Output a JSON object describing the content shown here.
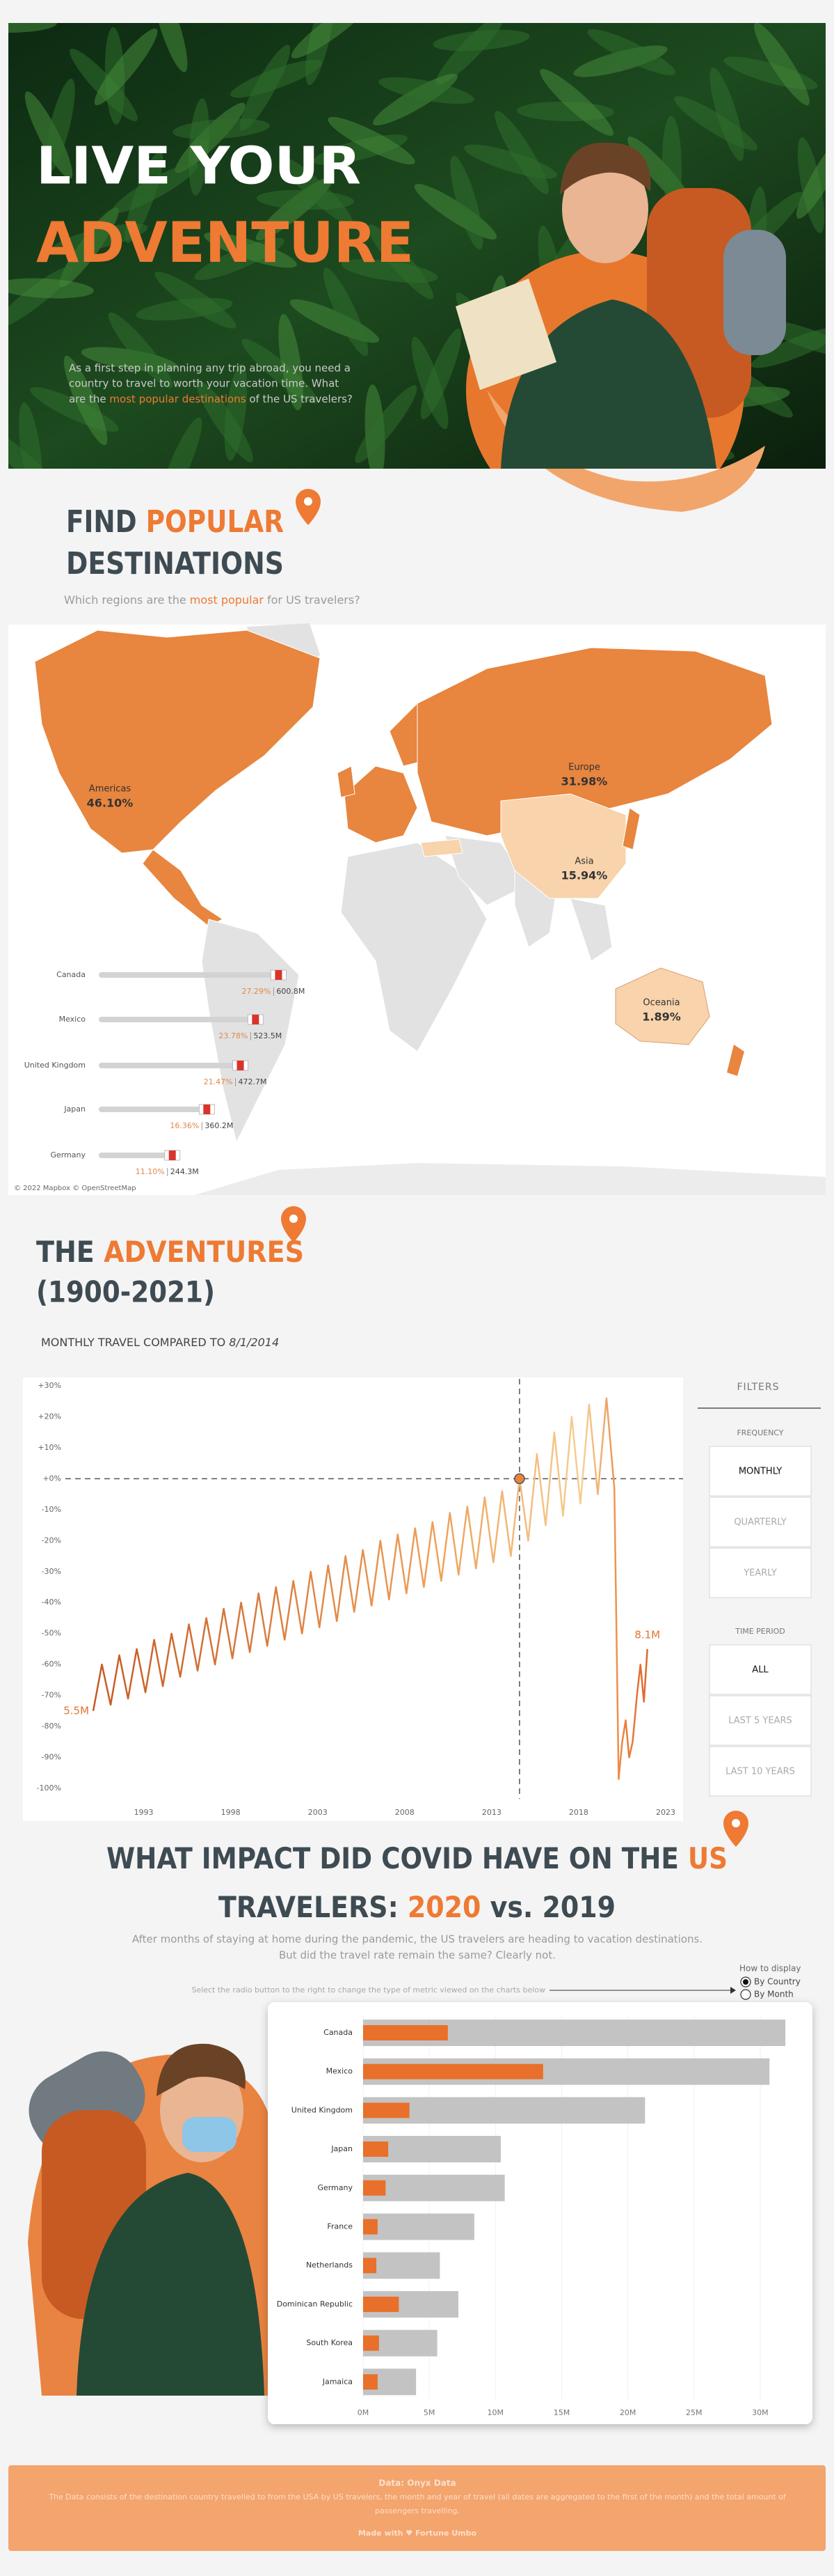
{
  "hero": {
    "title_line1": "LIVE YOUR",
    "title_line2": "ADVENTURE",
    "intro_lines": [
      "As a first step in planning any trip abroad, you need a",
      "country to travel to worth your vacation time. What"
    ],
    "intro_last": [
      "are the ",
      "most popular destinations",
      " of the US travelers?"
    ]
  },
  "destinations": {
    "title": [
      "FIND ",
      "POPULAR",
      "DESTINATIONS"
    ],
    "subtitle": [
      "Which regions are the ",
      "most popular",
      " for US travelers?"
    ],
    "regions": [
      {
        "name": "Americas",
        "value": 46.1,
        "value_label": "46.10%"
      },
      {
        "name": "Europe",
        "value": 31.98,
        "value_label": "31.98%"
      },
      {
        "name": "Asia",
        "value": 15.94,
        "value_label": "15.94%"
      },
      {
        "name": "Oceania",
        "value": 1.89,
        "value_label": "1.89%"
      }
    ],
    "countries": {
      "names": [
        "Canada",
        "Mexico",
        "United Kingdom",
        "Japan",
        "Germany"
      ],
      "values": [
        27.29,
        23.78,
        21.47,
        16.36,
        11.1
      ],
      "value_labels": [
        "27.29%",
        "23.78%",
        "21.47%",
        "16.36%",
        "11.10%"
      ],
      "travelers": [
        600.8,
        523.5,
        472.7,
        360.2,
        244.3
      ],
      "traveler_labels": [
        "600.8M",
        "523.5M",
        "472.7M",
        "360.2M",
        "244.3M"
      ],
      "xlim": [
        0,
        30
      ]
    },
    "attribution": "© 2022 Mapbox © OpenStreetMap"
  },
  "adventures": {
    "title": [
      "THE ",
      "ADVENTURES",
      "(1900-2021)"
    ]
  },
  "chart_data": [
    {
      "type": "line",
      "title": "MONTHLY TRAVEL COMPARED TO ",
      "title_date": "8/1/2014",
      "x": [
        1990.1,
        1990.6,
        1991.1,
        1991.6,
        1992.1,
        1992.6,
        1993.1,
        1993.6,
        1994.1,
        1994.6,
        1995.1,
        1995.6,
        1996.1,
        1996.6,
        1997.1,
        1997.6,
        1998.1,
        1998.6,
        1999.1,
        1999.6,
        2000.1,
        2000.6,
        2001.1,
        2001.6,
        2002.1,
        2002.6,
        2003.1,
        2003.6,
        2004.1,
        2004.6,
        2005.1,
        2005.6,
        2006.1,
        2006.6,
        2007.1,
        2007.6,
        2008.1,
        2008.6,
        2009.1,
        2009.6,
        2010.1,
        2010.6,
        2011.1,
        2011.6,
        2012.1,
        2012.6,
        2013.1,
        2013.6,
        2014.1,
        2014.6,
        2015.1,
        2015.6,
        2016.1,
        2016.6,
        2017.1,
        2017.6,
        2018.1,
        2018.6,
        2019.1,
        2019.6,
        2020.05,
        2020.3,
        2020.5,
        2020.7,
        2020.9,
        2021.1,
        2021.35,
        2021.55,
        2021.75,
        2021.95
      ],
      "series": [
        {
          "color": "#e2732f",
          "values": [
            -75,
            -60,
            -73,
            -57,
            -71,
            -55,
            -69,
            -52,
            -67,
            -50,
            -64,
            -47,
            -62,
            -45,
            -60,
            -42,
            -58,
            -40,
            -56,
            -37,
            -54,
            -35,
            -52,
            -33,
            -50,
            -30,
            -48,
            -28,
            -46,
            -25,
            -43,
            -23,
            -41,
            -20,
            -39,
            -18,
            -37,
            -16,
            -35,
            -14,
            -33,
            -11,
            -31,
            -9,
            -29,
            -6,
            -27,
            -4,
            -25,
            0,
            -20,
            8,
            -15,
            15,
            -12,
            20,
            -8,
            24,
            -5,
            26,
            -3,
            -97,
            -85,
            -78,
            -90,
            -85,
            -70,
            -60,
            -72,
            -55
          ]
        }
      ],
      "annotations": [
        "5.5M",
        "8.1M"
      ],
      "reference": {
        "x": 2014.6,
        "y": 0
      },
      "xlim": [
        1988.5,
        2024
      ],
      "ylim": [
        -100,
        30
      ],
      "xticks": [
        1993,
        1998,
        2003,
        2008,
        2013,
        2018,
        2023
      ],
      "yticks": [
        {
          "value": 30,
          "label": "+30%"
        },
        {
          "value": 20,
          "label": "+20%"
        },
        {
          "value": 10,
          "label": "+10%"
        },
        {
          "value": 0,
          "label": "+0%"
        },
        {
          "value": -10,
          "label": "-10%"
        },
        {
          "value": -20,
          "label": "-20%"
        },
        {
          "value": -30,
          "label": "-30%"
        },
        {
          "value": -40,
          "label": "-40%"
        },
        {
          "value": -50,
          "label": "-50%"
        },
        {
          "value": -60,
          "label": "-60%"
        },
        {
          "value": -70,
          "label": "-70%"
        },
        {
          "value": -80,
          "label": "-80%"
        },
        {
          "value": -90,
          "label": "-90%"
        },
        {
          "value": -100,
          "label": "-100%"
        }
      ]
    },
    {
      "type": "bar",
      "orientation": "horizontal",
      "categories": [
        "Canada",
        "Mexico",
        "United Kingdom",
        "Japan",
        "Germany",
        "France",
        "Netherlands",
        "Dominican Republic",
        "South Korea",
        "Jamaica"
      ],
      "series": [
        {
          "color": "#c3c3c3",
          "values": [
            31.9,
            30.7,
            21.3,
            10.4,
            10.7,
            8.4,
            5.8,
            7.2,
            5.6,
            4.0
          ]
        },
        {
          "color": "#e8702a",
          "values": [
            6.4,
            13.6,
            3.5,
            1.9,
            1.7,
            1.1,
            1.0,
            2.7,
            1.2,
            1.1
          ]
        }
      ],
      "xlim": [
        0,
        33
      ],
      "xticks": [
        {
          "value": 0,
          "label": "0M"
        },
        {
          "value": 5,
          "label": "5M"
        },
        {
          "value": 10,
          "label": "10M"
        },
        {
          "value": 15,
          "label": "15M"
        },
        {
          "value": 20,
          "label": "20M"
        },
        {
          "value": 25,
          "label": "25M"
        },
        {
          "value": 30,
          "label": "30M"
        }
      ],
      "grid": true
    }
  ],
  "filters": {
    "title": "FILTERS",
    "groups": [
      {
        "title": "FREQUENCY",
        "options": [
          "MONTHLY",
          "QUARTERLY",
          "YEARLY"
        ],
        "selected": 0
      },
      {
        "title": "TIME PERIOD",
        "options": [
          "ALL",
          "LAST 5 YEARS",
          "LAST 10 YEARS"
        ],
        "selected": 0
      }
    ]
  },
  "covid": {
    "title_line1": [
      "WHAT IMPACT DID COVID HAVE ON THE ",
      "US"
    ],
    "title_line2": [
      "TRAVELERS: ",
      "2020",
      " vs. 2019"
    ],
    "subtitle_lines": [
      "After months of staying at home during the pandemic, the US travelers are heading to vacation destinations.",
      "But did the travel rate remain the same? Clearly not."
    ],
    "instruction": "Select the radio button to the right to change the type of metric viewed on the charts below",
    "toggle": {
      "title": "How to display",
      "options": [
        "By Country",
        "By Month"
      ],
      "selected": 0
    }
  },
  "footer": {
    "source": "Data: Onyx Data",
    "description_lines": [
      "The Data consists of the destination country travelled to from the USA by US travelers, the month and year of travel (all dates are aggregated to the first of the month) and the total amount of",
      "passengers travelling."
    ],
    "made_with": "Made with ♥ Fortune Umbo"
  }
}
